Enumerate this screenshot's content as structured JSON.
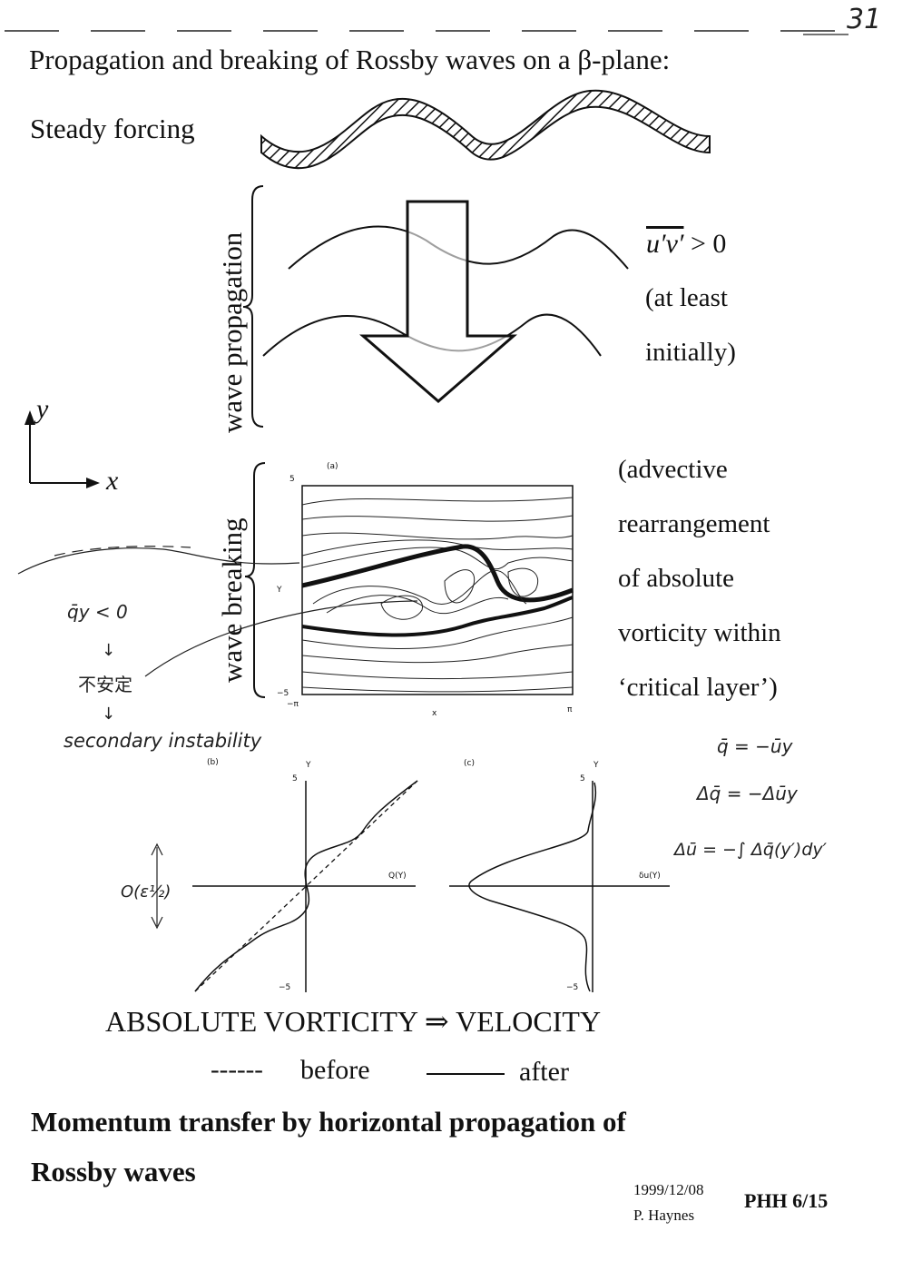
{
  "page_number": "31",
  "title": "Propagation and breaking of Rossby waves on a β-plane:",
  "forcing_label": "Steady forcing",
  "vertical_labels": {
    "propagation": "wave propagation",
    "breaking": "wave breaking"
  },
  "flux": {
    "expr": "u′v′",
    "rel": " > 0",
    "note1": "(at least",
    "note2": "initially)"
  },
  "axes": {
    "y": "y",
    "x": "x"
  },
  "breaking_notes": [
    "(advective",
    "rearrangement",
    "of absolute",
    "vorticity within",
    "‘critical layer’)"
  ],
  "panel_a": {
    "tag": "(a)",
    "y_top": "5",
    "y_bottom": "−5",
    "y_label": "Y",
    "x_left": "−π",
    "x_mid": "x",
    "x_right": "π"
  },
  "panel_b": {
    "tag": "(b)",
    "y_top": "5",
    "y_bottom": "−5",
    "y_label": "Y",
    "curve_label": "Q(Y)"
  },
  "panel_c": {
    "tag": "(c)",
    "y_top": "5",
    "y_bottom": "−5",
    "y_label": "Y",
    "curve_label": "δu(Y)"
  },
  "handwritten": {
    "qy": "q̄y < 0",
    "arrow1": "↓",
    "kanji": "不安定",
    "arrow2": "↓",
    "secondary": "secondary instability",
    "eq1": "q̄ = −ūy",
    "eq2": "Δq̄ = −Δūy",
    "eq3": "Δū = −∫ Δq̄(y′)dy′",
    "order": "O(ε½)"
  },
  "mid_label": "ABSOLUTE VORTICITY ⇒ VELOCITY",
  "legend": {
    "dashed_line": "------",
    "before": "before",
    "after": "after"
  },
  "bottom_title_1": "Momentum transfer by horizontal propagation of",
  "bottom_title_2": "Rossby waves",
  "footer": {
    "date": "1999/12/08",
    "author": "P. Haynes",
    "code": "PHH 6/15"
  }
}
